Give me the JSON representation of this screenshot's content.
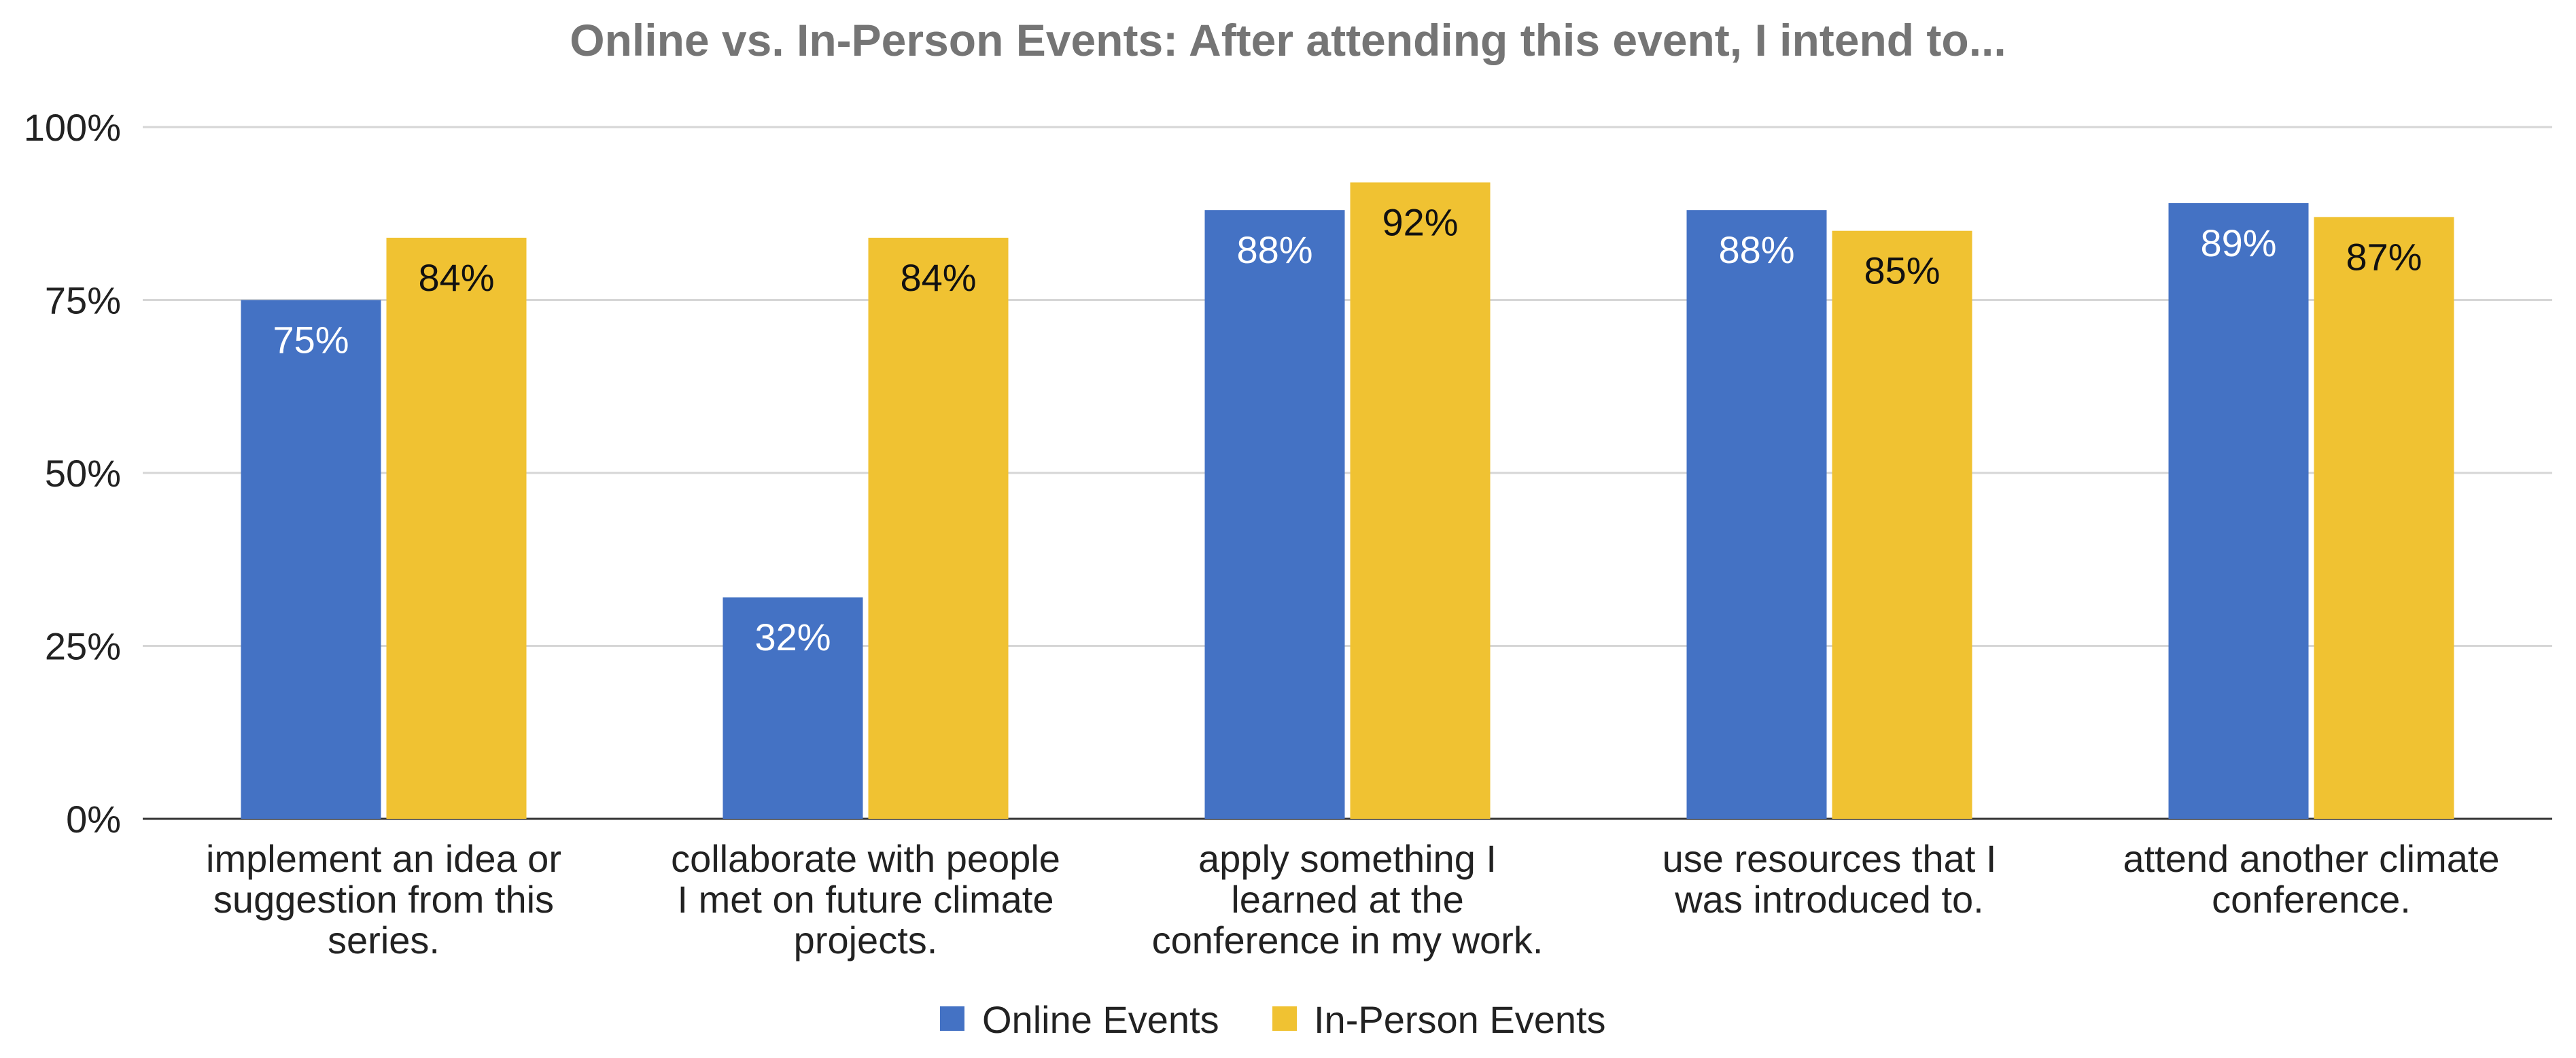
{
  "chart_data": {
    "type": "bar",
    "title": "Online vs. In-Person Events: After attending this event, I intend to...",
    "xlabel": "",
    "ylabel": "",
    "ylim": [
      0,
      100
    ],
    "yticks": [
      "0%",
      "25%",
      "50%",
      "75%",
      "100%"
    ],
    "ytick_values": [
      0,
      25,
      50,
      75,
      100
    ],
    "grid": true,
    "legend_position": "bottom",
    "categories": [
      [
        "implement an idea or",
        "suggestion from this",
        "series."
      ],
      [
        "collaborate with people",
        "I met on future climate",
        "projects."
      ],
      [
        "apply something I",
        "learned at the",
        "conference in my work."
      ],
      [
        "use resources that I",
        "was introduced to."
      ],
      [
        "attend another climate",
        "conference."
      ]
    ],
    "series": [
      {
        "name": "Online Events",
        "color": "#4472C4",
        "label_color": "#ffffff",
        "values": [
          75,
          32,
          88,
          88,
          89
        ],
        "labels": [
          "75%",
          "32%",
          "88%",
          "88%",
          "89%"
        ]
      },
      {
        "name": "In-Person Events",
        "color": "#F0C232",
        "label_color": "#111111",
        "values": [
          84,
          84,
          92,
          85,
          87
        ],
        "labels": [
          "84%",
          "84%",
          "92%",
          "85%",
          "87%"
        ]
      }
    ]
  }
}
